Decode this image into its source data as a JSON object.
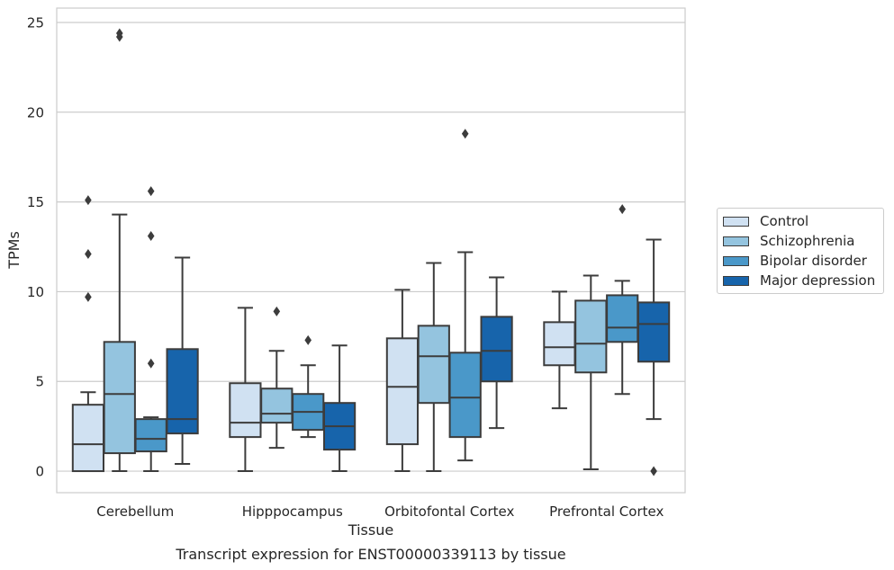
{
  "chart_data": {
    "type": "box",
    "xlabel": "Tissue",
    "ylabel": "TPMs",
    "caption": "Transcript expression for ENST00000339113 by tissue",
    "ylim": [
      -1.2,
      25.8
    ],
    "yticks": [
      0,
      5,
      10,
      15,
      20,
      25
    ],
    "grid": true,
    "legend_position": "right",
    "categories": [
      "Cerebellum",
      "Hipppocampus",
      "Orbitofontal Cortex",
      "Prefrontal Cortex"
    ],
    "series": [
      {
        "name": "Control",
        "color": "#d0e1f2",
        "boxes": [
          {
            "whisker_low": 0,
            "q1": 0,
            "median": 1.5,
            "q3": 3.7,
            "whisker_high": 4.4,
            "outliers": [
              9.7,
              12.1,
              15.1
            ]
          },
          {
            "whisker_low": 0,
            "q1": 1.9,
            "median": 2.7,
            "q3": 4.9,
            "whisker_high": 9.1,
            "outliers": []
          },
          {
            "whisker_low": 0,
            "q1": 1.5,
            "median": 4.7,
            "q3": 7.4,
            "whisker_high": 10.1,
            "outliers": []
          },
          {
            "whisker_low": 3.5,
            "q1": 5.9,
            "median": 6.9,
            "q3": 8.3,
            "whisker_high": 10.0,
            "outliers": []
          }
        ]
      },
      {
        "name": "Schizophrenia",
        "color": "#94c4df",
        "boxes": [
          {
            "whisker_low": 0,
            "q1": 1.0,
            "median": 4.3,
            "q3": 7.2,
            "whisker_high": 14.3,
            "outliers": [
              24.2,
              24.4
            ]
          },
          {
            "whisker_low": 1.3,
            "q1": 2.7,
            "median": 3.2,
            "q3": 4.6,
            "whisker_high": 6.7,
            "outliers": [
              8.9
            ]
          },
          {
            "whisker_low": 0,
            "q1": 3.8,
            "median": 6.4,
            "q3": 8.1,
            "whisker_high": 11.6,
            "outliers": []
          },
          {
            "whisker_low": 0.1,
            "q1": 5.5,
            "median": 7.1,
            "q3": 9.5,
            "whisker_high": 10.9,
            "outliers": []
          }
        ]
      },
      {
        "name": "Bipolar disorder",
        "color": "#4a98c9",
        "boxes": [
          {
            "whisker_low": 0,
            "q1": 1.1,
            "median": 1.8,
            "q3": 2.9,
            "whisker_high": 3.0,
            "outliers": [
              6.0,
              13.1,
              15.6
            ]
          },
          {
            "whisker_low": 1.9,
            "q1": 2.3,
            "median": 3.3,
            "q3": 4.3,
            "whisker_high": 5.9,
            "outliers": [
              7.3
            ]
          },
          {
            "whisker_low": 0.6,
            "q1": 1.9,
            "median": 4.1,
            "q3": 6.6,
            "whisker_high": 12.2,
            "outliers": [
              18.8
            ]
          },
          {
            "whisker_low": 4.3,
            "q1": 7.2,
            "median": 8.0,
            "q3": 9.8,
            "whisker_high": 10.6,
            "outliers": [
              14.6
            ]
          }
        ]
      },
      {
        "name": "Major depression",
        "color": "#1764ab",
        "boxes": [
          {
            "whisker_low": 0.4,
            "q1": 2.1,
            "median": 2.9,
            "q3": 6.8,
            "whisker_high": 11.9,
            "outliers": []
          },
          {
            "whisker_low": 0,
            "q1": 1.2,
            "median": 2.5,
            "q3": 3.8,
            "whisker_high": 7.0,
            "outliers": []
          },
          {
            "whisker_low": 2.4,
            "q1": 5.0,
            "median": 6.7,
            "q3": 8.6,
            "whisker_high": 10.8,
            "outliers": []
          },
          {
            "whisker_low": 2.9,
            "q1": 6.1,
            "median": 8.2,
            "q3": 9.4,
            "whisker_high": 12.9,
            "outliers": [
              0
            ]
          }
        ]
      }
    ]
  }
}
